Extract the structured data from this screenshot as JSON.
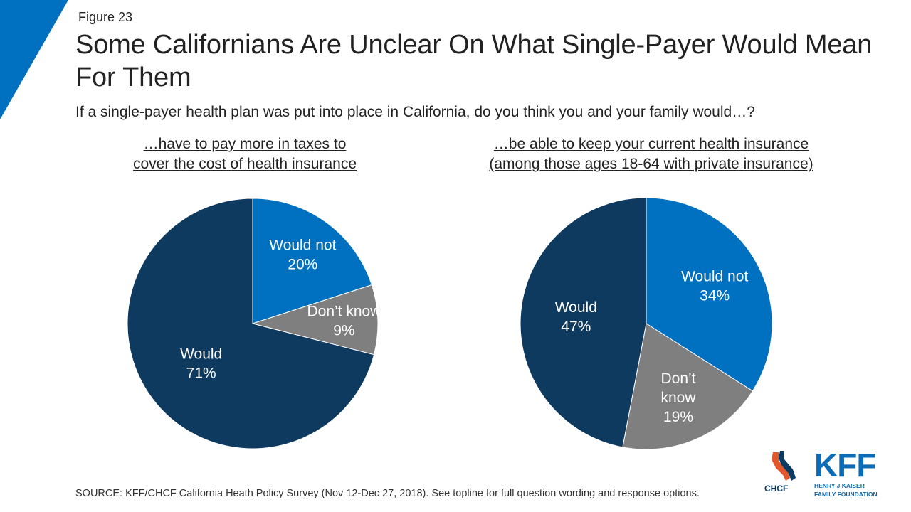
{
  "figure_label": "Figure 23",
  "title": "Some Californians Are Unclear On What Single-Payer Would Mean For Them",
  "subtitle": "If a single-payer health plan was put into place in California, do you think you and your family would…?",
  "colors": {
    "would": "#0f3a5f",
    "would_not": "#0070c0",
    "dont_know": "#7f7f7f",
    "accent": "#0070c0"
  },
  "chart_data": [
    {
      "type": "pie",
      "title_lines": [
        "…have to pay more in taxes to",
        "cover the cost of health insurance"
      ],
      "slices": [
        {
          "label_lines": [
            "Would not",
            "20%"
          ],
          "value": 20,
          "color": "#0070c0"
        },
        {
          "label_lines": [
            "Don’t know",
            "9%"
          ],
          "value": 9,
          "color": "#7f7f7f"
        },
        {
          "label_lines": [
            "Would",
            "71%"
          ],
          "value": 71,
          "color": "#0f3a5f"
        }
      ]
    },
    {
      "type": "pie",
      "title_lines": [
        "…be able to keep your current health insurance",
        "(among those ages 18-64 with private insurance)"
      ],
      "slices": [
        {
          "label_lines": [
            "Would not",
            "34%"
          ],
          "value": 34,
          "color": "#0070c0"
        },
        {
          "label_lines": [
            "Don’t",
            "know",
            "19%"
          ],
          "value": 19,
          "color": "#7f7f7f"
        },
        {
          "label_lines": [
            "Would",
            "47%"
          ],
          "value": 47,
          "color": "#0f3a5f"
        }
      ]
    }
  ],
  "source": "SOURCE: KFF/CHCF California Heath Policy Survey (Nov 12-Dec 27, 2018). See topline for full question wording and response options.",
  "logos": {
    "chcf": "CHCF",
    "kff": "KFF",
    "kff_sub_lines": [
      "HENRY J KAISER",
      "FAMILY FOUNDATION"
    ]
  }
}
